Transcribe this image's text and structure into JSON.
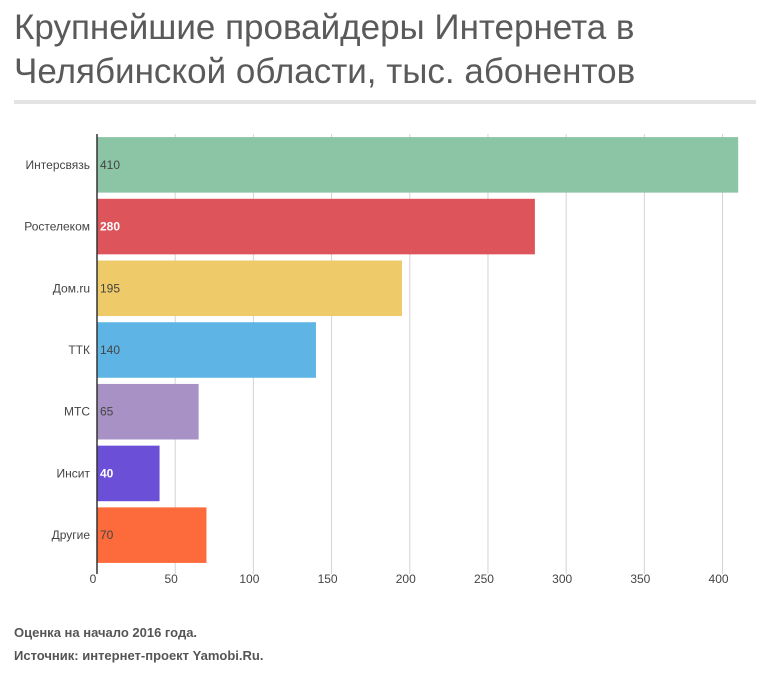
{
  "chart_data": {
    "type": "bar",
    "orientation": "horizontal",
    "title": "Крупнейшие провайдеры Интернета в Челябинской области, тыс. абонентов",
    "categories": [
      "Интерсвязь",
      "Ростелеком",
      "Дом.ru",
      "ТТК",
      "МТС",
      "Инсит",
      "Другие"
    ],
    "values": [
      410,
      280,
      195,
      140,
      65,
      40,
      70
    ],
    "value_labels": [
      "410",
      "280",
      "195",
      "140",
      "65",
      "40",
      "70"
    ],
    "colors": [
      "#8cc4a6",
      "#dd545a",
      "#eecb68",
      "#5eb4e4",
      "#a891c5",
      "#6b4fd6",
      "#fd6a3c"
    ],
    "label_colors": [
      "#444444",
      "#ffffff",
      "#444444",
      "#444444",
      "#444444",
      "#ffffff",
      "#444444"
    ],
    "xlim": [
      0,
      415
    ],
    "xticks": [
      0,
      50,
      100,
      150,
      200,
      250,
      300,
      350,
      400
    ],
    "xtick_labels": [
      "0",
      "50",
      "100",
      "150",
      "200",
      "250",
      "300",
      "350",
      "400"
    ],
    "xlabel": "",
    "ylabel": "",
    "grid": true
  },
  "footnotes": {
    "note": "Оценка на начало 2016 года.",
    "source": "Источник: интернет-проект Yamobi.Ru."
  }
}
